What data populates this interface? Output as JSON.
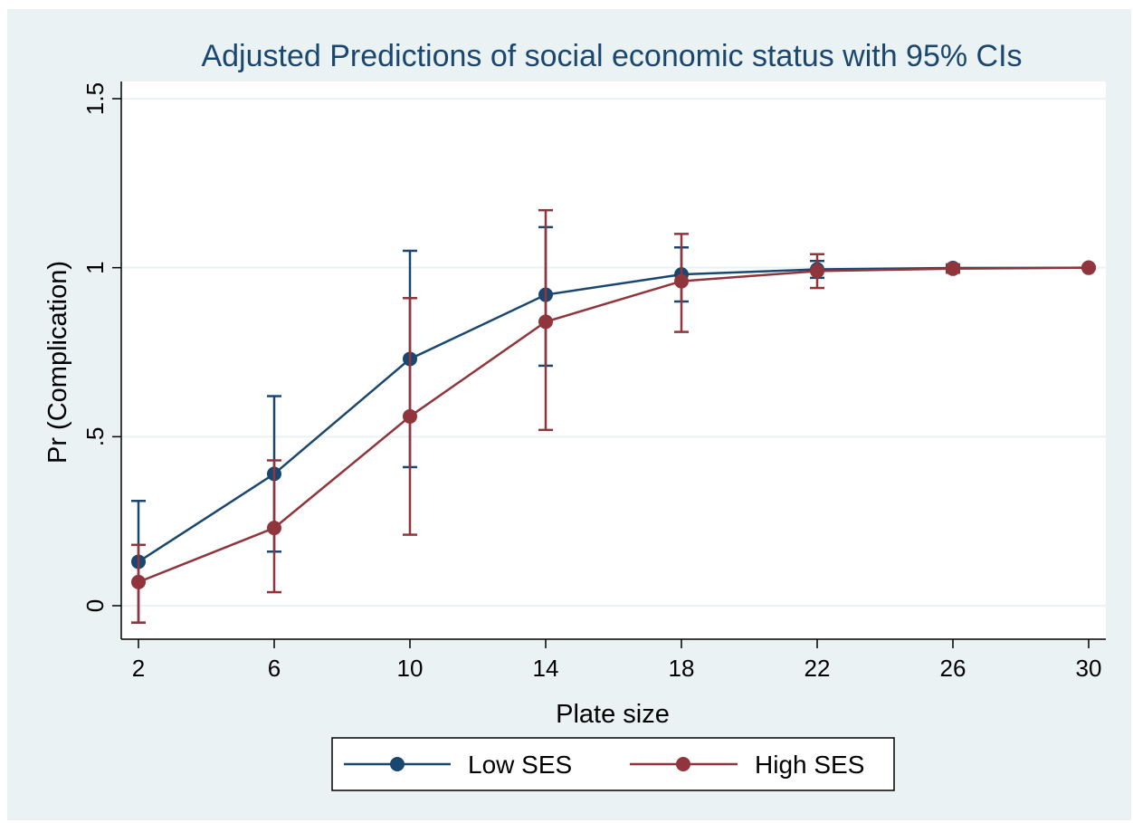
{
  "chart_data": {
    "type": "line",
    "title": "Adjusted Predictions of social economic status with 95% CIs",
    "xlabel": "Plate size",
    "ylabel": "Pr (Complication)",
    "xlim": [
      2,
      30
    ],
    "ylim": [
      -0.1,
      1.55
    ],
    "x": [
      2,
      6,
      10,
      14,
      18,
      22,
      26,
      30
    ],
    "x_ticks": [
      "2",
      "6",
      "10",
      "14",
      "18",
      "22",
      "26",
      "30"
    ],
    "y_ticks": [
      {
        "value": 0,
        "label": "0"
      },
      {
        "value": 0.5,
        "label": ".5"
      },
      {
        "value": 1,
        "label": "1"
      },
      {
        "value": 1.5,
        "label": "1.5"
      }
    ],
    "grid": true,
    "legend_position": "bottom",
    "series": [
      {
        "name": "Low SES",
        "color": "#1a476f",
        "values": [
          0.13,
          0.39,
          0.73,
          0.92,
          0.98,
          0.995,
          0.999,
          1.0
        ],
        "ci_lower": [
          -0.05,
          0.16,
          0.41,
          0.71,
          0.9,
          0.97,
          0.99,
          1.0
        ],
        "ci_upper": [
          0.31,
          0.62,
          1.05,
          1.12,
          1.06,
          1.02,
          1.005,
          1.0
        ]
      },
      {
        "name": "High SES",
        "color": "#90353b",
        "values": [
          0.07,
          0.23,
          0.56,
          0.84,
          0.96,
          0.99,
          0.997,
          1.0
        ],
        "ci_lower": [
          -0.05,
          0.04,
          0.21,
          0.52,
          0.81,
          0.94,
          0.985,
          0.998
        ],
        "ci_upper": [
          0.18,
          0.43,
          0.91,
          1.17,
          1.1,
          1.04,
          1.01,
          1.002
        ]
      }
    ]
  }
}
